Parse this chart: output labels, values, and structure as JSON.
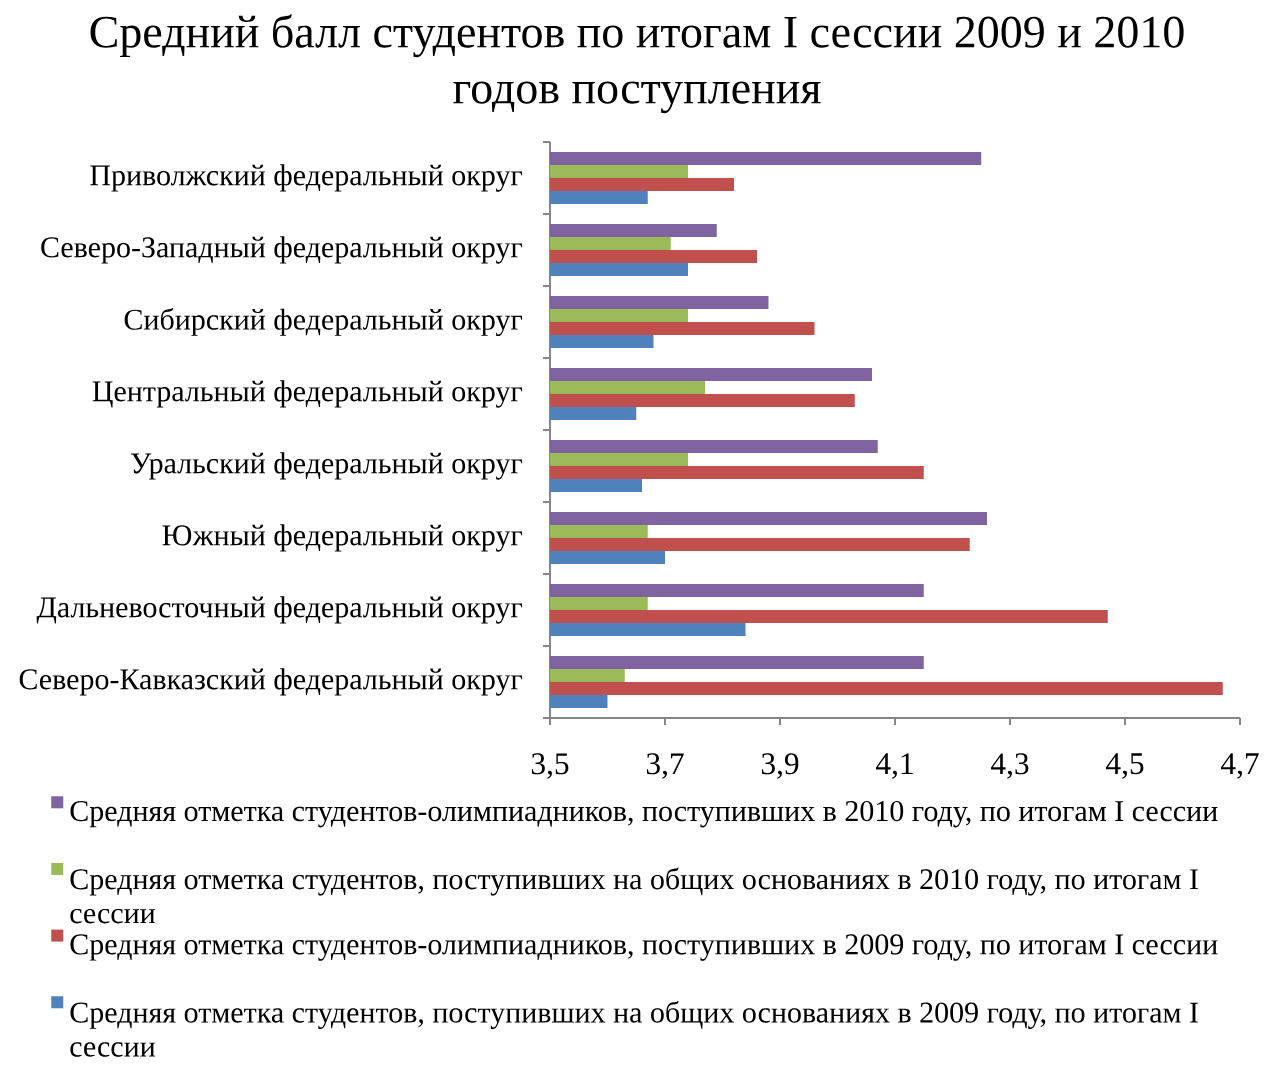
{
  "chart_data": {
    "type": "bar",
    "orientation": "horizontal",
    "title": "Средний балл студентов по итогам I сессии 2009 и 2010 годов поступления",
    "categories": [
      "Приволжский федеральный округ",
      "Северо-Западный федеральный округ",
      "Сибирский федеральный округ",
      "Центральный федеральный округ",
      "Уральский федеральный округ",
      "Южный федеральный округ",
      "Дальневосточный федеральный округ",
      "Северо-Кавказский федеральный округ"
    ],
    "series": [
      {
        "name": "Средняя отметка студентов-олимпиадников, поступивших в 2010 году, по итогам I сессии",
        "color": "#8064a2",
        "values": [
          4.25,
          3.79,
          3.88,
          4.06,
          4.07,
          4.26,
          4.15,
          4.15
        ]
      },
      {
        "name": "Средняя отметка студентов, поступивших на общих основаниях в 2010 году, по итогам I сессии",
        "color": "#9bbb59",
        "values": [
          3.74,
          3.71,
          3.74,
          3.77,
          3.74,
          3.67,
          3.67,
          3.63
        ]
      },
      {
        "name": "Средняя отметка студентов-олимпиадников, поступивших в 2009 году, по итогам I сессии",
        "color": "#c0504d",
        "values": [
          3.82,
          3.86,
          3.96,
          4.03,
          4.15,
          4.23,
          4.47,
          4.67
        ]
      },
      {
        "name": "Средняя отметка студентов, поступивших на общих основаниях в 2009 году, по итогам I сессии",
        "color": "#4f81bd",
        "values": [
          3.67,
          3.74,
          3.68,
          3.65,
          3.66,
          3.7,
          3.84,
          3.6
        ]
      }
    ],
    "xlim": [
      3.5,
      4.7
    ],
    "xticks": [
      {
        "value": 3.5,
        "label": "3,5"
      },
      {
        "value": 3.7,
        "label": "3,7"
      },
      {
        "value": 3.9,
        "label": "3,9"
      },
      {
        "value": 4.1,
        "label": "4,1"
      },
      {
        "value": 4.3,
        "label": "4,3"
      },
      {
        "value": 4.5,
        "label": "4,5"
      },
      {
        "value": 4.7,
        "label": "4,7"
      }
    ],
    "legend": "bottom"
  }
}
